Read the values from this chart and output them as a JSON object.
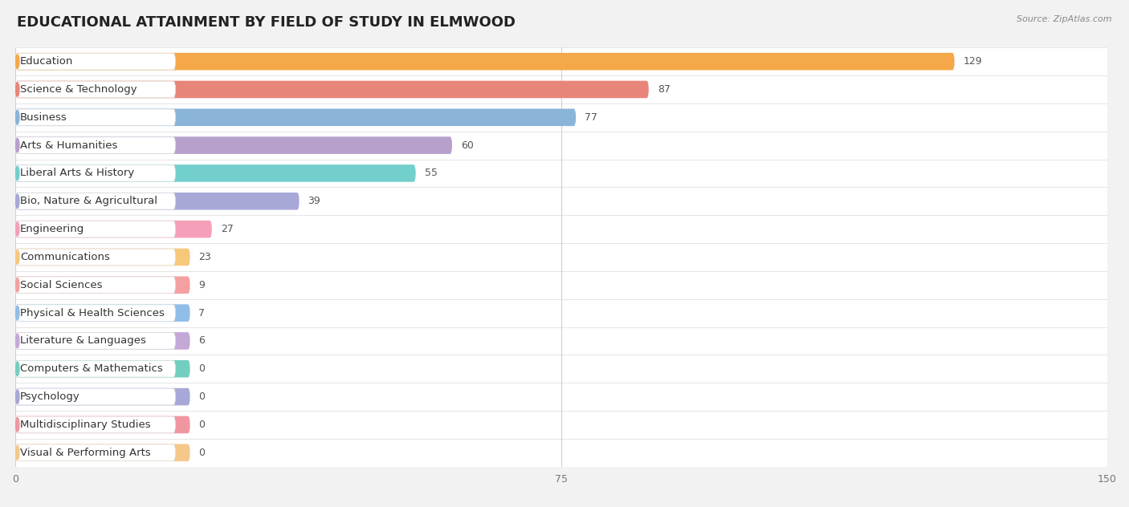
{
  "categories": [
    "Education",
    "Science & Technology",
    "Business",
    "Arts & Humanities",
    "Liberal Arts & History",
    "Bio, Nature & Agricultural",
    "Engineering",
    "Communications",
    "Social Sciences",
    "Physical & Health Sciences",
    "Literature & Languages",
    "Computers & Mathematics",
    "Psychology",
    "Multidisciplinary Studies",
    "Visual & Performing Arts"
  ],
  "values": [
    129,
    87,
    77,
    60,
    55,
    39,
    27,
    23,
    9,
    7,
    6,
    0,
    0,
    0,
    0
  ],
  "bar_colors": [
    "#F5A84A",
    "#E8857A",
    "#8AB4D8",
    "#B8A0CC",
    "#72CFCC",
    "#A8A8D8",
    "#F5A0B8",
    "#F5C87A",
    "#F5A0A0",
    "#90BEE8",
    "#C4A8D8",
    "#72CFC0",
    "#A8A8D8",
    "#F096A0",
    "#F5C88A"
  ],
  "xlim": [
    0,
    150
  ],
  "xticks": [
    0,
    75,
    150
  ],
  "title": "EDUCATIONAL ATTAINMENT BY FIELD OF STUDY IN ELMWOOD",
  "source": "Source: ZipAtlas.com",
  "background_color": "#f2f2f2",
  "bar_bg_color": "#ffffff",
  "title_fontsize": 13,
  "label_fontsize": 9.5,
  "value_fontsize": 9,
  "bar_height": 0.62
}
